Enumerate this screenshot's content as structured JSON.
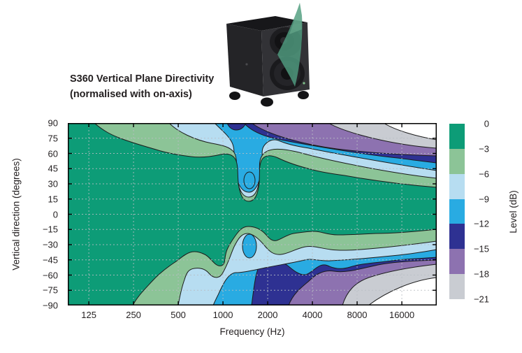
{
  "title": {
    "line1": "S360 Vertical Plane Directivity",
    "line2": "(normalised with on-axis)"
  },
  "chart_data": {
    "type": "contour",
    "xlabel": "Frequency (Hz)",
    "ylabel": "Vertical direction (degrees)",
    "x_scale": "log",
    "x_ticks": [
      "125",
      "250",
      "500",
      "1000",
      "2000",
      "4000",
      "8000",
      "16000"
    ],
    "y_ticks": [
      "90",
      "75",
      "60",
      "45",
      "30",
      "15",
      "0",
      "−15",
      "−30",
      "−45",
      "−60",
      "−75",
      "−90"
    ],
    "y_range_degrees": [
      -90,
      90
    ],
    "levels_db": [
      0,
      -3,
      -6,
      -9,
      -12,
      -15,
      -18,
      -21
    ],
    "description": "Normalised vertical directivity map: the 0 to -3 dB (green) on-axis region covers all angles below ~250 Hz and narrows with rising frequency toward roughly +30/-25 degrees; a narrow -6/-9 dB notch funnel dips down to about +30 degrees near 1.4 kHz with a -9/-12 dB core; below the axis a -9/-12 dB lobe appears near 1.4 kHz at about -40 degrees; attenuation bands stack diagonally so levels fall below -21 dB (white) at the top-right corner above ~8 kHz near +90 degrees and at the bottom-right corner beyond ~8-16 kHz near -60 to -90 degrees."
  },
  "legend": {
    "title": "Level (dB)",
    "labels": [
      "0",
      "−3",
      "−6",
      "−9",
      "−12",
      "−15",
      "−18",
      "−21"
    ],
    "colors": [
      "#0d9c77",
      "#8cc497",
      "#b7ddf1",
      "#29abe2",
      "#2e3192",
      "#8d72b0",
      "#c9ccd2"
    ],
    "below_min_color": "#ffffff"
  },
  "speaker": {
    "beam_color": "#4f9c80",
    "cabinet_color": "#2e2e30"
  }
}
